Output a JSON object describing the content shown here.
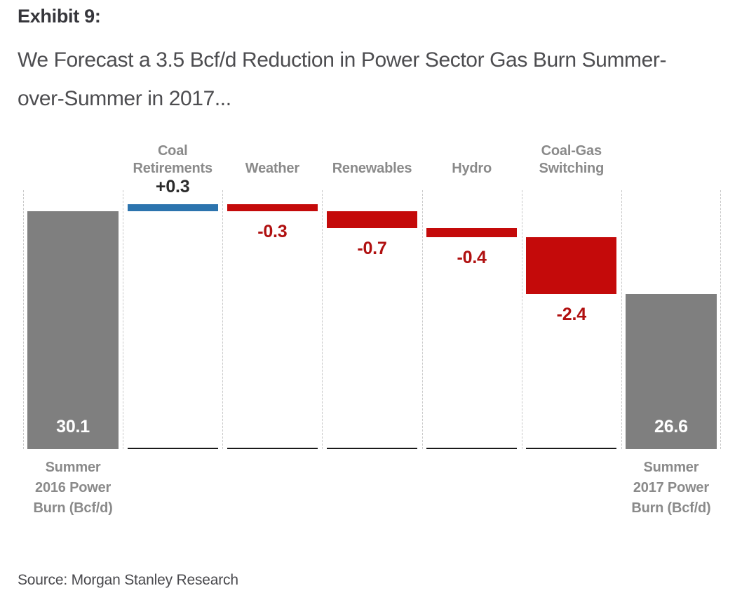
{
  "page": {
    "exhibit_label": "Exhibit 9:",
    "subtitle_lines": [
      "We Forecast a 3.5 Bcf/d Reduction in Power Sector Gas Burn Summer-",
      "over-Summer in 2017..."
    ],
    "source": "Source: Morgan Stanley Research"
  },
  "colors": {
    "bar_gray": "#7F7F7F",
    "bar_blue": "#2C74AE",
    "bar_red": "#C40A0A",
    "value_positive_text": "#2B2B2B",
    "value_negative_text": "#B01010",
    "total_value_text": "#FFFFFF",
    "category_label": "#8A8A8A",
    "axis_line": "#1A1A1A",
    "grid_dash": "#C9C9C9"
  },
  "chart_data": {
    "type": "waterfall",
    "title": "We Forecast a 3.5 Bcf/d Reduction in Power Sector Gas Burn Summer-over-Summer in 2017...",
    "unit": "Bcf/d",
    "ylim": [
      20,
      31
    ],
    "grid": "vertical dashed column separators, individual black baselines per column",
    "legend": "none",
    "net_change": -3.5,
    "steps": [
      {
        "category": "Summer 2016 Power Burn (Bcf/d)",
        "category_lines": [
          "Summer",
          "2016 Power",
          "Burn (Bcf/d)"
        ],
        "label_position": "bottom",
        "role": "total",
        "value": 30.1,
        "value_label": "30.1",
        "value_label_placement": "inside-bottom",
        "color_key": "bar_gray"
      },
      {
        "category": "Coal Retirements",
        "category_lines": [
          "Coal",
          "Retirements"
        ],
        "label_position": "top",
        "role": "delta",
        "value": 0.3,
        "value_label": "+0.3",
        "value_label_placement": "above",
        "color_key": "bar_blue"
      },
      {
        "category": "Weather",
        "category_lines": [
          "Weather"
        ],
        "label_position": "top",
        "role": "delta",
        "value": -0.3,
        "value_label": "-0.3",
        "value_label_placement": "below",
        "color_key": "bar_red"
      },
      {
        "category": "Renewables",
        "category_lines": [
          "Renewables"
        ],
        "label_position": "top",
        "role": "delta",
        "value": -0.7,
        "value_label": "-0.7",
        "value_label_placement": "below",
        "color_key": "bar_red"
      },
      {
        "category": "Hydro",
        "category_lines": [
          "Hydro"
        ],
        "label_position": "top",
        "role": "delta",
        "value": -0.4,
        "value_label": "-0.4",
        "value_label_placement": "below",
        "color_key": "bar_red"
      },
      {
        "category": "Coal-Gas Switching",
        "category_lines": [
          "Coal-Gas",
          "Switching"
        ],
        "label_position": "top",
        "role": "delta",
        "value": -2.4,
        "value_label": "-2.4",
        "value_label_placement": "below",
        "color_key": "bar_red"
      },
      {
        "category": "Summer 2017 Power Burn (Bcf/d)",
        "category_lines": [
          "Summer",
          "2017 Power",
          "Burn (Bcf/d)"
        ],
        "label_position": "bottom",
        "role": "total",
        "value": 26.6,
        "value_label": "26.6",
        "value_label_placement": "inside-bottom",
        "color_key": "bar_gray"
      }
    ]
  }
}
